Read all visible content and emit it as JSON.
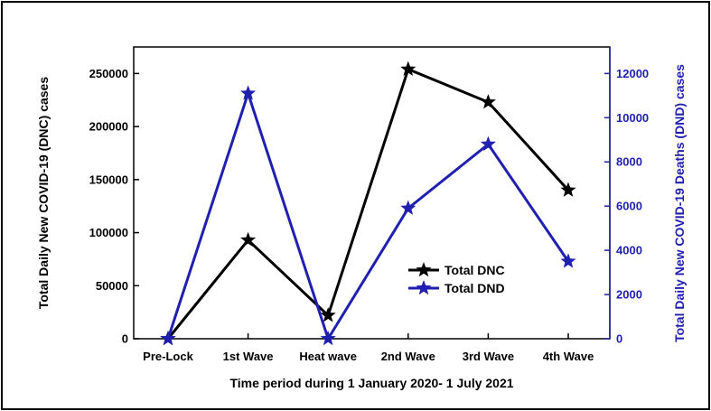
{
  "chart_data": {
    "type": "line",
    "categories": [
      "Pre-Lock",
      "1st Wave",
      "Heat wave",
      "2nd Wave",
      "3rd Wave",
      "4th Wave"
    ],
    "xlabel": "Time period during 1 January 2020- 1 July 2021",
    "ylabel_left": "Total Daily New COVID-19 (DNC) cases",
    "ylabel_right": "Total Daily New COVID-19 Deaths (DND) cases",
    "ylim_left": [
      0,
      275000
    ],
    "ylim_right": [
      0,
      13200
    ],
    "yticks_left": [
      0,
      50000,
      100000,
      150000,
      200000,
      250000
    ],
    "yticks_right": [
      0,
      2000,
      4000,
      6000,
      8000,
      10000,
      12000
    ],
    "legend_position": "center-right",
    "grid": false,
    "series": [
      {
        "name": "Total DNC",
        "axis": "left",
        "color": "#000000",
        "marker": "star",
        "values": [
          0,
          93000,
          22000,
          254000,
          223000,
          140000
        ]
      },
      {
        "name": "Total DND",
        "axis": "right",
        "color": "#1f1fb0",
        "marker": "star",
        "values": [
          0,
          11100,
          0,
          5900,
          8800,
          3500
        ]
      }
    ]
  }
}
